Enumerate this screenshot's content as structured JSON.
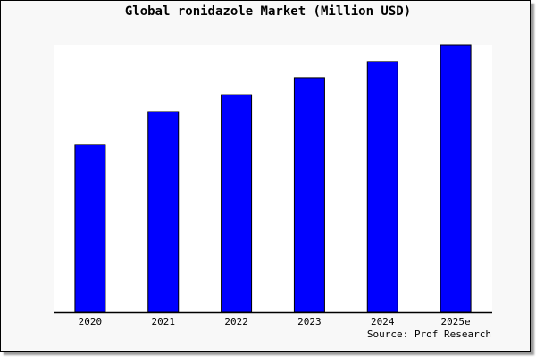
{
  "chart_data": {
    "type": "bar",
    "title": "Global ronidazole Market (Million USD)",
    "categories": [
      "2020",
      "2021",
      "2022",
      "2023",
      "2024",
      "2025e"
    ],
    "values": [
      62.7,
      75.0,
      81.3,
      87.7,
      93.7,
      100
    ],
    "value_note_free": true,
    "ylim": [
      0,
      100
    ],
    "grid": false,
    "bar_color": "#0000ff",
    "source": "Source: Prof Research"
  }
}
